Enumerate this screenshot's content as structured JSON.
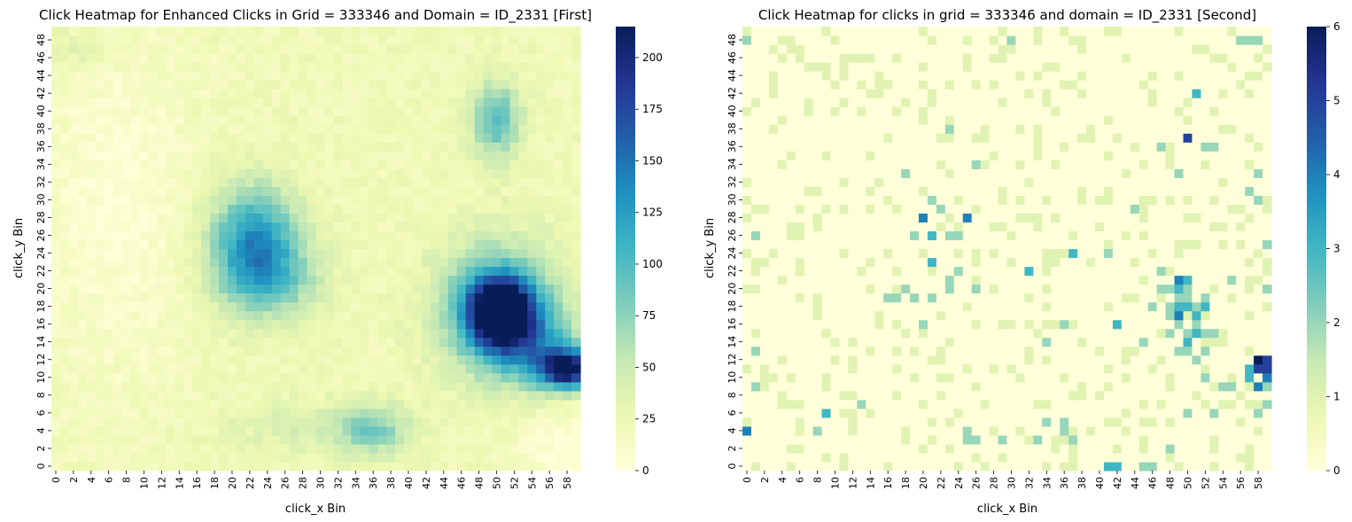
{
  "chart_data": [
    {
      "type": "heatmap",
      "title": "Click Heatmap for Enhanced Clicks in Grid = 333346 and Domain = ID_2331 [First]",
      "xlabel": "click_x Bin",
      "ylabel": "click_y Bin",
      "x_bins": 60,
      "y_bins": 50,
      "x_ticks": [
        "0",
        "2",
        "4",
        "6",
        "8",
        "10",
        "12",
        "14",
        "16",
        "18",
        "20",
        "22",
        "24",
        "26",
        "28",
        "30",
        "32",
        "34",
        "36",
        "38",
        "40",
        "42",
        "44",
        "46",
        "48",
        "50",
        "52",
        "54",
        "56",
        "58"
      ],
      "y_ticks": [
        "0",
        "2",
        "4",
        "6",
        "8",
        "10",
        "12",
        "14",
        "16",
        "18",
        "20",
        "22",
        "24",
        "26",
        "28",
        "30",
        "32",
        "34",
        "36",
        "38",
        "40",
        "42",
        "44",
        "46",
        "48"
      ],
      "colormap": "YlGnBu",
      "color_range": [
        0,
        215
      ],
      "colorbar_ticks": [
        "0",
        "25",
        "50",
        "75",
        "100",
        "125",
        "150",
        "175",
        "200"
      ],
      "baseline": 22,
      "hotspots": [
        {
          "x": 50.5,
          "y": 17.5,
          "peak": 215,
          "sx": 2.5,
          "sy": 2.5
        },
        {
          "x": 50.0,
          "y": 18.0,
          "peak": 90,
          "sx": 4.5,
          "sy": 5.0
        },
        {
          "x": 58.0,
          "y": 11.0,
          "peak": 190,
          "sx": 2.2,
          "sy": 1.5
        },
        {
          "x": 54.0,
          "y": 13.5,
          "peak": 70,
          "sx": 4.0,
          "sy": 3.0
        },
        {
          "x": 22.5,
          "y": 25.0,
          "peak": 110,
          "sx": 3.5,
          "sy": 4.5
        },
        {
          "x": 25.0,
          "y": 21.0,
          "peak": 40,
          "sx": 4.0,
          "sy": 3.0
        },
        {
          "x": 50.0,
          "y": 39.0,
          "peak": 75,
          "sx": 2.0,
          "sy": 3.0
        },
        {
          "x": 36.0,
          "y": 4.0,
          "peak": 55,
          "sx": 3.0,
          "sy": 2.0
        },
        {
          "x": 28.0,
          "y": 4.5,
          "peak": 20,
          "sx": 6.0,
          "sy": 2.0
        },
        {
          "x": 2.0,
          "y": 47.0,
          "peak": 15,
          "sx": 4.0,
          "sy": 2.0
        }
      ],
      "cold_regions": [
        {
          "x": 7.0,
          "y": 30.0,
          "depth": 18,
          "sx": 6.0,
          "sy": 14.0
        },
        {
          "x": 57.0,
          "y": 2.0,
          "depth": 20,
          "sx": 3.0,
          "sy": 3.0
        }
      ]
    },
    {
      "type": "heatmap",
      "title": "Click Heatmap for clicks in grid = 333346 and domain = ID_2331 [Second]",
      "xlabel": "click_x Bin",
      "ylabel": "click_y Bin",
      "x_bins": 60,
      "y_bins": 50,
      "x_ticks": [
        "0",
        "2",
        "4",
        "6",
        "8",
        "10",
        "12",
        "14",
        "16",
        "18",
        "20",
        "22",
        "24",
        "26",
        "28",
        "30",
        "32",
        "34",
        "36",
        "38",
        "40",
        "42",
        "44",
        "46",
        "48",
        "50",
        "52",
        "54",
        "56",
        "58"
      ],
      "y_ticks": [
        "0",
        "2",
        "4",
        "6",
        "8",
        "10",
        "12",
        "14",
        "16",
        "18",
        "20",
        "22",
        "24",
        "26",
        "28",
        "30",
        "32",
        "34",
        "36",
        "38",
        "40",
        "42",
        "44",
        "46",
        "48"
      ],
      "colormap": "YlGnBu",
      "color_range": [
        0,
        6
      ],
      "colorbar_ticks": [
        "0",
        "1",
        "2",
        "3",
        "4",
        "5",
        "6"
      ],
      "sparse_seed": 333346,
      "points": [
        [
          58,
          12,
          6
        ],
        [
          59,
          12,
          5
        ],
        [
          59,
          11,
          5
        ],
        [
          58,
          11,
          5
        ],
        [
          57,
          11,
          3
        ],
        [
          59,
          10,
          4
        ],
        [
          58,
          9,
          4
        ],
        [
          57,
          10,
          3
        ],
        [
          50,
          37,
          5
        ],
        [
          51,
          42,
          3
        ],
        [
          49,
          21,
          4
        ],
        [
          49,
          17,
          4
        ],
        [
          50,
          21,
          3
        ],
        [
          49,
          20,
          3
        ],
        [
          48,
          18,
          3
        ],
        [
          49,
          18,
          3
        ],
        [
          50,
          18,
          3
        ],
        [
          51,
          17,
          3
        ],
        [
          50,
          15,
          2
        ],
        [
          51,
          15,
          3
        ],
        [
          52,
          18,
          3
        ],
        [
          48,
          18,
          2
        ],
        [
          50,
          14,
          3
        ],
        [
          50,
          20,
          2
        ],
        [
          20,
          28,
          4
        ],
        [
          25,
          28,
          4
        ],
        [
          21,
          26,
          3
        ],
        [
          21,
          23,
          3
        ],
        [
          32,
          22,
          3
        ],
        [
          37,
          24,
          3
        ],
        [
          42,
          16,
          3
        ],
        [
          41,
          24,
          2
        ],
        [
          9,
          6,
          3
        ],
        [
          13,
          7,
          2
        ],
        [
          0,
          4,
          4
        ],
        [
          41,
          0,
          3
        ],
        [
          42,
          0,
          3
        ],
        [
          46,
          0,
          2
        ],
        [
          45,
          0,
          2
        ],
        [
          1,
          9,
          2
        ],
        [
          1,
          13,
          2
        ],
        [
          1,
          26,
          2
        ],
        [
          30,
          48,
          2
        ],
        [
          57,
          48,
          2
        ],
        [
          58,
          48,
          2
        ],
        [
          56,
          48,
          2
        ],
        [
          26,
          34,
          2
        ],
        [
          23,
          38,
          2
        ],
        [
          44,
          29,
          2
        ],
        [
          58,
          33,
          2
        ],
        [
          57,
          31,
          2
        ],
        [
          58,
          30,
          2
        ],
        [
          59,
          25,
          2
        ],
        [
          59,
          20,
          2
        ],
        [
          59,
          9,
          2
        ],
        [
          59,
          7,
          2
        ],
        [
          58,
          6,
          2
        ],
        [
          53,
          6,
          2
        ],
        [
          50,
          6,
          2
        ],
        [
          48,
          2,
          2
        ],
        [
          36,
          16,
          2
        ],
        [
          34,
          14,
          2
        ],
        [
          36,
          4,
          2
        ],
        [
          36,
          5,
          2
        ],
        [
          34,
          5,
          2
        ],
        [
          37,
          3,
          2
        ],
        [
          33,
          3,
          2
        ],
        [
          29,
          3,
          2
        ],
        [
          25,
          4,
          2
        ],
        [
          25,
          3,
          2
        ],
        [
          26,
          3,
          2
        ],
        [
          17,
          19,
          2
        ],
        [
          16,
          19,
          2
        ],
        [
          19,
          19,
          2
        ],
        [
          21,
          19,
          2
        ],
        [
          20,
          16,
          2
        ],
        [
          26,
          20,
          2
        ],
        [
          23,
          21,
          2
        ],
        [
          23,
          20,
          2
        ],
        [
          24,
          22,
          2
        ],
        [
          24,
          26,
          2
        ],
        [
          23,
          26,
          2
        ],
        [
          19,
          26,
          2
        ],
        [
          22,
          29,
          2
        ],
        [
          21,
          30,
          2
        ],
        [
          18,
          33,
          2
        ],
        [
          52,
          15,
          2
        ],
        [
          53,
          15,
          2
        ],
        [
          52,
          13,
          2
        ],
        [
          55,
          9,
          2
        ],
        [
          54,
          9,
          2
        ],
        [
          52,
          10,
          2
        ],
        [
          51,
          12,
          2
        ],
        [
          47,
          22,
          2
        ],
        [
          47,
          20,
          2
        ],
        [
          45,
          14,
          2
        ],
        [
          50,
          13,
          2
        ],
        [
          49,
          13,
          2
        ],
        [
          48,
          15,
          2
        ],
        [
          48,
          17,
          2
        ],
        [
          49,
          16,
          2
        ],
        [
          51,
          16,
          2
        ],
        [
          51,
          18,
          2
        ],
        [
          46,
          18,
          2
        ],
        [
          50,
          19,
          2
        ],
        [
          49,
          19,
          2
        ],
        [
          48,
          20,
          2
        ],
        [
          52,
          19,
          2
        ],
        [
          55,
          21,
          2
        ],
        [
          0,
          48,
          2
        ],
        [
          8,
          4,
          2
        ],
        [
          18,
          20,
          2
        ],
        [
          47,
          36,
          2
        ],
        [
          52,
          36,
          2
        ],
        [
          53,
          36,
          2
        ],
        [
          49,
          33,
          2
        ],
        [
          4,
          48,
          1
        ]
      ]
    }
  ]
}
